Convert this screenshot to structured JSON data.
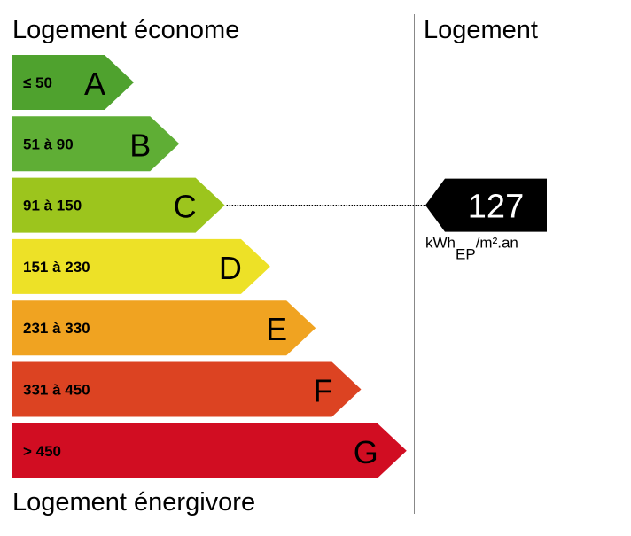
{
  "chart_data": {
    "type": "bar",
    "title_top": "Logement économe",
    "title_bottom": "Logement énergivore",
    "column_title": "Logement",
    "classes": [
      {
        "letter": "A",
        "range": "≤ 50",
        "color": "#4fa22e"
      },
      {
        "letter": "B",
        "range": "51 à 90",
        "color": "#5fae35"
      },
      {
        "letter": "C",
        "range": "91 à 150",
        "color": "#9cc51d"
      },
      {
        "letter": "D",
        "range": "151 à 230",
        "color": "#ede127"
      },
      {
        "letter": "E",
        "range": "231 à 330",
        "color": "#f0a321"
      },
      {
        "letter": "F",
        "range": "331 à 450",
        "color": "#dc4322"
      },
      {
        "letter": "G",
        "range": "> 450",
        "color": "#d10d22"
      }
    ],
    "value": 127,
    "value_class": "C",
    "unit_prefix": "kWh",
    "unit_sub": "EP",
    "unit_suffix": "/m².an"
  }
}
